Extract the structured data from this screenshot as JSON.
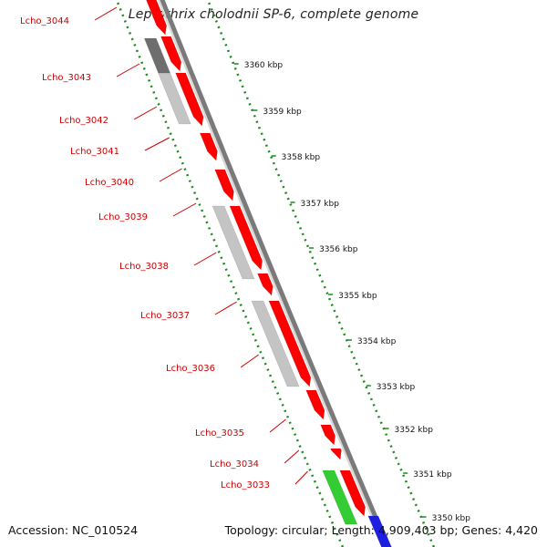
{
  "title": "Leptothrix cholodnii SP-6, complete genome",
  "accession_text": "Accession: NC_010524",
  "summary_text": "Topology: circular; Length: 4,909,403 bp; Genes: 4,420",
  "colors": {
    "gene_forward": "#ff0000",
    "gene_other": "#c4c4c4",
    "gene_dark": "#6e6e6e",
    "gene_green": "#33cc33",
    "gene_blue": "#1f1fe0",
    "backbone": "#7a7a7a",
    "dotted_track": "#1a8a1a",
    "label": "#cc0000"
  },
  "gene_labels": [
    "Lcho_3044",
    "Lcho_3043",
    "Lcho_3042",
    "Lcho_3041",
    "Lcho_3040",
    "Lcho_3039",
    "Lcho_3038",
    "Lcho_3037",
    "Lcho_3036",
    "Lcho_3035",
    "Lcho_3034",
    "Lcho_3033"
  ],
  "scale_labels": [
    "3360 kbp",
    "3359 kbp",
    "3358 kbp",
    "3357 kbp",
    "3356 kbp",
    "3355 kbp",
    "3354 kbp",
    "3353 kbp",
    "3352 kbp",
    "3351 kbp",
    "3350 kbp"
  ]
}
